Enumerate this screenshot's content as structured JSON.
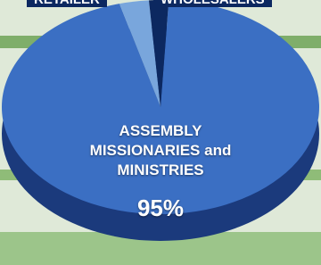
{
  "chart_data": {
    "type": "pie",
    "categories": [
      "ASSEMBLY MISSIONARIES and MINISTRIES",
      "RETAILER",
      "WHOLESALERS"
    ],
    "values": [
      95,
      3,
      2
    ],
    "value_labels": [
      "95%",
      null,
      null
    ],
    "colors": [
      "#3b6fc3",
      "#79a6dc",
      "#0c2860"
    ]
  }
}
